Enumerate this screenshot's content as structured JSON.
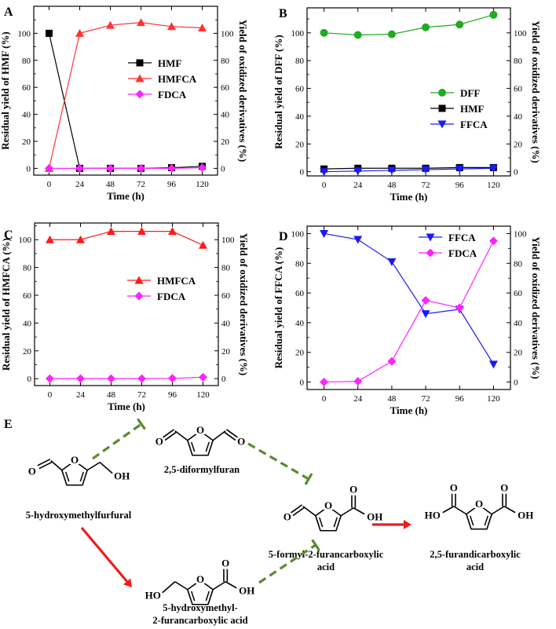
{
  "chart_data": [
    {
      "panel": "A",
      "type": "line",
      "x": [
        0,
        24,
        48,
        72,
        96,
        120
      ],
      "xlabel": "Time (h)",
      "ylabel": "Residual yield of HMF (%)",
      "ylabel_right": "Yield of oxidized derivatives (%)",
      "xlim": [
        -12,
        132
      ],
      "ylim": [
        -5,
        120
      ],
      "yticks": [
        0,
        20,
        40,
        60,
        80,
        100
      ],
      "series": [
        {
          "name": "HMF",
          "color": "#000000",
          "marker": "square",
          "values": [
            100,
            0,
            0,
            0,
            0.5,
            1.5
          ]
        },
        {
          "name": "HMFCA",
          "color": "#ff3333",
          "marker": "triangle-up",
          "values": [
            0,
            100,
            106,
            108,
            105,
            104
          ]
        },
        {
          "name": "FDCA",
          "color": "#ff22ff",
          "marker": "diamond",
          "values": [
            0,
            0,
            0,
            0,
            0,
            0.5
          ]
        }
      ]
    },
    {
      "panel": "B",
      "type": "line",
      "x": [
        0,
        24,
        48,
        72,
        96,
        120
      ],
      "xlabel": "Time (h)",
      "ylabel": "Residual yield of DFF (%)",
      "ylabel_right": "Yield of oxidized derivatives (%)",
      "xlim": [
        -12,
        132
      ],
      "ylim": [
        -3,
        118
      ],
      "yticks": [
        0,
        20,
        40,
        60,
        80,
        100
      ],
      "series": [
        {
          "name": "DFF",
          "color": "#22aa22",
          "marker": "circle",
          "values": [
            100,
            98.5,
            99,
            104,
            106,
            113
          ]
        },
        {
          "name": "HMF",
          "color": "#000000",
          "marker": "square",
          "values": [
            2,
            2.5,
            2.5,
            2.5,
            3,
            3
          ]
        },
        {
          "name": "FFCA",
          "color": "#1a1aff",
          "marker": "triangle-down",
          "values": [
            0,
            0.5,
            1,
            1.5,
            2,
            2.5
          ]
        }
      ]
    },
    {
      "panel": "C",
      "type": "line",
      "x": [
        0,
        24,
        48,
        72,
        96,
        120
      ],
      "xlabel": "Time (h)",
      "ylabel": "Residual yield of HMFCA (%)",
      "ylabel_right": "Yield of oxidized derivatives (%)",
      "xlim": [
        -12,
        132
      ],
      "ylim": [
        -5,
        112
      ],
      "yticks": [
        0,
        20,
        40,
        60,
        80,
        100
      ],
      "series": [
        {
          "name": "HMFCA",
          "color": "#ff1a1a",
          "marker": "triangle-up",
          "values": [
            100,
            100,
            106,
            106,
            106,
            96
          ]
        },
        {
          "name": "FDCA",
          "color": "#ff22ff",
          "marker": "diamond",
          "values": [
            0,
            0,
            0,
            0,
            0.2,
            1
          ]
        }
      ]
    },
    {
      "panel": "D",
      "type": "line",
      "x": [
        0,
        24,
        48,
        72,
        96,
        120
      ],
      "xlabel": "Time (h)",
      "ylabel": "Residual yield of FFCA (%)",
      "ylabel_right": "Yield of oxidized derivatives (%)",
      "xlim": [
        -12,
        132
      ],
      "ylim": [
        -5,
        105
      ],
      "yticks": [
        0,
        20,
        40,
        60,
        80,
        100
      ],
      "series": [
        {
          "name": "FFCA",
          "color": "#1a1aee",
          "marker": "triangle-down",
          "values": [
            100,
            96,
            81,
            46,
            49,
            12
          ]
        },
        {
          "name": "FDCA",
          "color": "#ff22ff",
          "marker": "diamond",
          "values": [
            0,
            0.5,
            14,
            55,
            50,
            95
          ]
        }
      ]
    }
  ],
  "scheme": {
    "panel": "E",
    "compounds": {
      "hmf": "5-hydroxymethylfurfural",
      "dff": "2,5-diformylfuran",
      "ffca_line1": "5-formyl-2-furancarboxylic",
      "ffca_line2": "acid",
      "fdca_line1": "2,5-furandicarboxylic",
      "fdca_line2": "acid",
      "hmfca_line1": "5-hydroxymethyl-",
      "hmfca_line2": "2-furancarboxylic acid"
    },
    "atoms": {
      "oxygen": "O",
      "hydroxyl": "OH",
      "hydroxyl_left": "HO"
    },
    "colors": {
      "promoted": "#ee1c1c",
      "inhibited": "#5a8a32"
    }
  }
}
